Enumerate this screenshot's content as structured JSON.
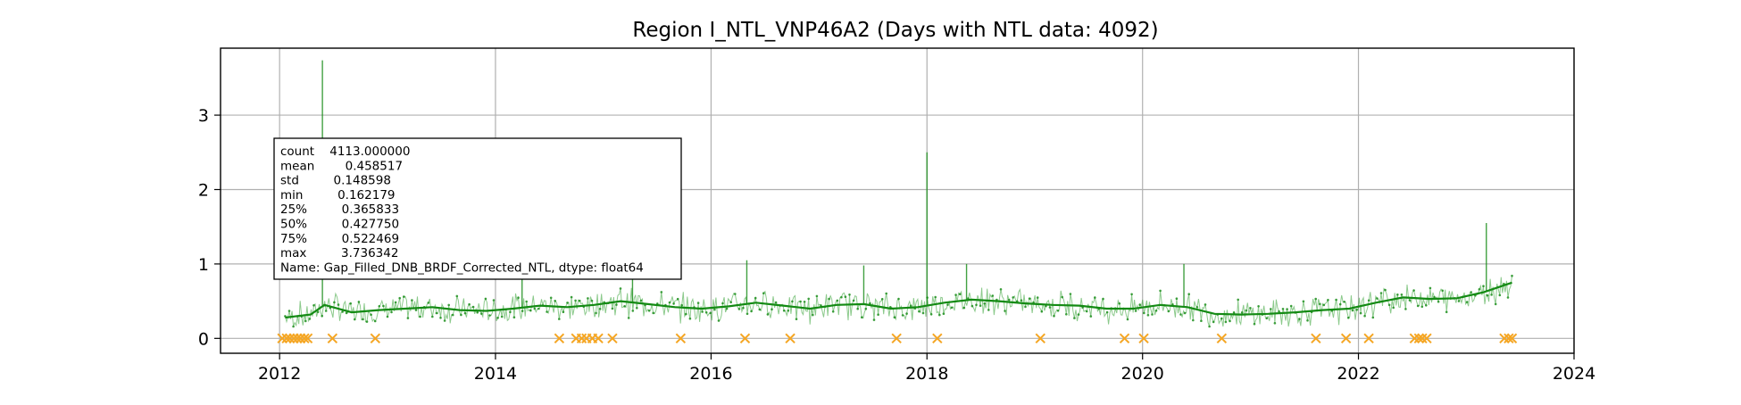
{
  "chart_data": {
    "type": "line",
    "title": "Region I_NTL_VNP46A2 (Days with NTL data: 4092)",
    "xlabel": "",
    "ylabel": "",
    "xlim": [
      "2011-06-15",
      "2024-01-01"
    ],
    "ylim": [
      -0.2,
      3.9
    ],
    "grid": true,
    "x_ticks": [
      "2012",
      "2014",
      "2016",
      "2018",
      "2020",
      "2022",
      "2024"
    ],
    "y_ticks": [
      "0",
      "1",
      "2",
      "3"
    ],
    "series": [
      {
        "type": "scatter",
        "color": "#f5a623",
        "marker": "x",
        "y": 0,
        "x": [
          "2012-01-10",
          "2012-01-25",
          "2012-02-05",
          "2012-02-18",
          "2012-03-01",
          "2012-03-12",
          "2012-03-25",
          "2012-04-05",
          "2012-06-28",
          "2012-11-20",
          "2014-08-05",
          "2014-10-01",
          "2014-10-20",
          "2014-11-05",
          "2014-11-25",
          "2014-12-15",
          "2015-02-01",
          "2015-09-20",
          "2016-04-25",
          "2016-09-25",
          "2017-09-20",
          "2018-02-05",
          "2019-01-20",
          "2019-11-01",
          "2020-01-05",
          "2020-09-25",
          "2021-08-10",
          "2021-11-20",
          "2022-02-05",
          "2022-07-10",
          "2022-07-25",
          "2022-08-05",
          "2022-08-20",
          "2023-05-10",
          "2023-05-25",
          "2023-06-05"
        ]
      },
      {
        "type": "line",
        "color": "#138a13",
        "x": [
          "2012-01-20",
          "2012-03-01",
          "2012-04-15",
          "2012-06-01",
          "2012-09-01",
          "2012-12-01",
          "2013-03-01",
          "2013-06-01",
          "2013-09-01",
          "2013-12-01",
          "2014-03-01",
          "2014-06-01",
          "2014-09-01",
          "2014-12-01",
          "2015-03-01",
          "2015-06-01",
          "2015-09-01",
          "2015-12-01",
          "2016-03-01",
          "2016-06-01",
          "2016-09-01",
          "2016-12-01",
          "2017-03-01",
          "2017-06-01",
          "2017-09-01",
          "2017-12-01",
          "2018-03-01",
          "2018-06-01",
          "2018-09-01",
          "2018-12-01",
          "2019-03-01",
          "2019-06-01",
          "2019-09-01",
          "2019-12-01",
          "2020-03-01",
          "2020-06-01",
          "2020-09-01",
          "2020-12-01",
          "2021-03-01",
          "2021-06-01",
          "2021-09-01",
          "2021-12-01",
          "2022-03-01",
          "2022-06-01",
          "2022-09-01",
          "2022-12-01",
          "2023-03-01",
          "2023-06-05"
        ],
        "y": [
          0.28,
          0.3,
          0.32,
          0.45,
          0.35,
          0.38,
          0.4,
          0.42,
          0.38,
          0.37,
          0.4,
          0.44,
          0.42,
          0.45,
          0.5,
          0.46,
          0.42,
          0.4,
          0.43,
          0.48,
          0.44,
          0.4,
          0.45,
          0.46,
          0.4,
          0.42,
          0.48,
          0.52,
          0.5,
          0.47,
          0.45,
          0.44,
          0.4,
          0.4,
          0.45,
          0.42,
          0.33,
          0.32,
          0.33,
          0.35,
          0.38,
          0.4,
          0.48,
          0.55,
          0.53,
          0.54,
          0.62,
          0.75
        ]
      },
      {
        "type": "spikes",
        "color": "#138a13",
        "x": [
          "2012-05-25",
          "2014-04-01",
          "2015-04-10",
          "2016-05-01",
          "2017-06-01",
          "2018-01-01",
          "2018-05-15",
          "2020-05-20",
          "2023-03-10"
        ],
        "y": [
          3.736342,
          0.85,
          1.3,
          1.05,
          0.98,
          2.5,
          1.0,
          1.0,
          1.55
        ]
      }
    ],
    "stats_box": {
      "lines": [
        "count    4113.000000",
        "mean        0.458517",
        "std         0.148598",
        "min         0.162179",
        "25%         0.365833",
        "50%         0.427750",
        "75%         0.522469",
        "max         3.736342",
        "Name: Gap_Filled_DNB_BRDF_Corrected_NTL, dtype: float64"
      ]
    }
  }
}
